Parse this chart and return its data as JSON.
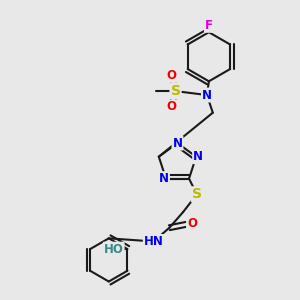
{
  "background_color": "#e8e8e8",
  "bond_color": "#1a1a1a",
  "atom_colors": {
    "N": "#0000ee",
    "O": "#ee0000",
    "S": "#bbbb00",
    "F": "#dd00dd",
    "HO": "#3a8888",
    "HN": "#0000ee",
    "C": "#1a1a1a"
  },
  "font_size_atom": 8.5,
  "fig_size": [
    3.0,
    3.0
  ],
  "dpi": 100
}
